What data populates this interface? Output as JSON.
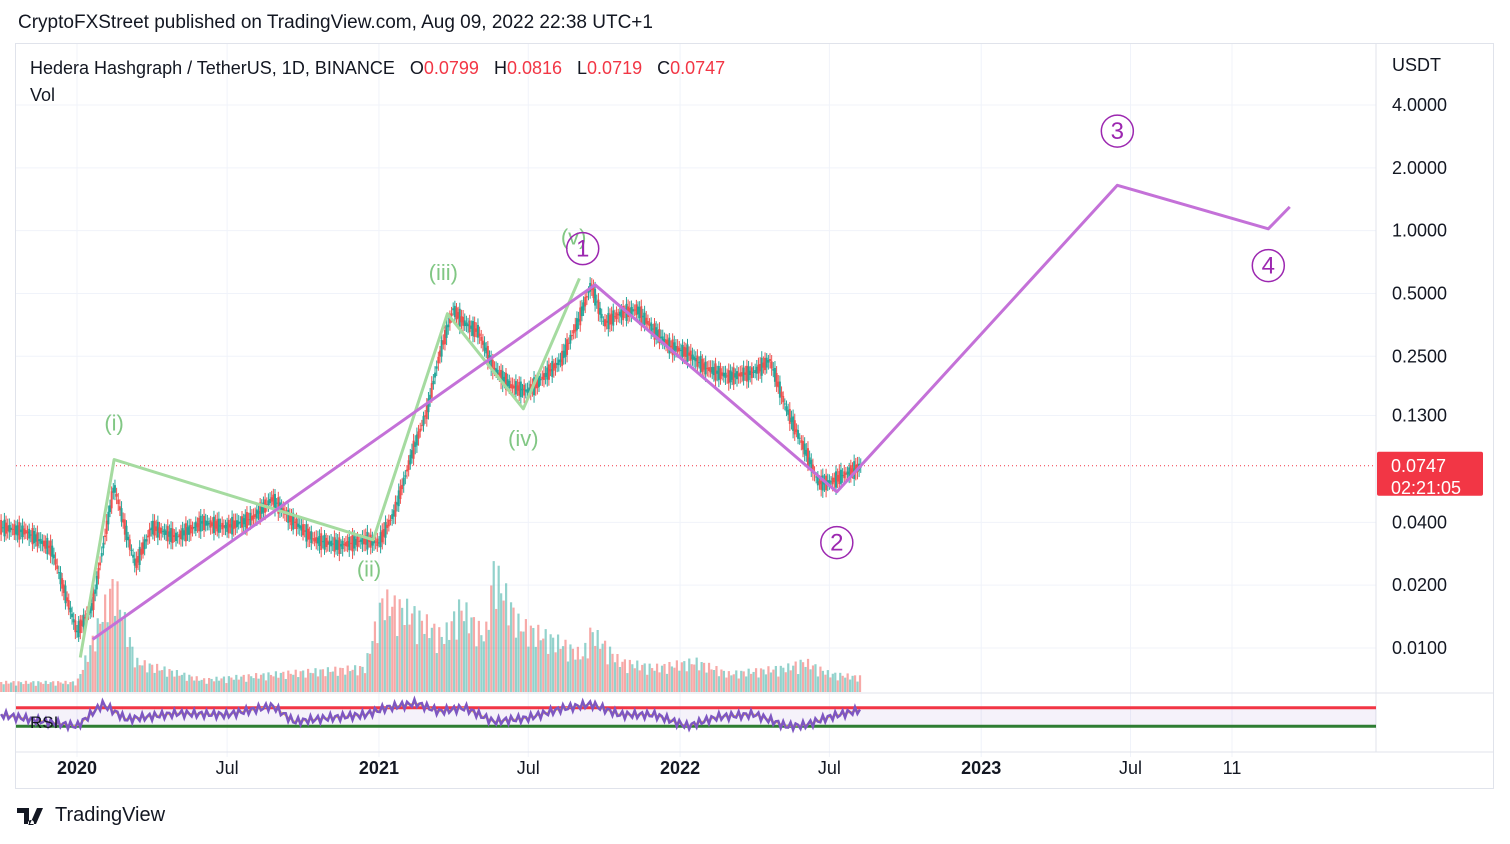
{
  "header": {
    "published_text": "CryptoFXStreet published on TradingView.com, Aug 09, 2022 22:38 UTC+1"
  },
  "legend": {
    "symbol": "Hedera Hashgraph / TetherUS, 1D, BINANCE",
    "open_label": "O",
    "open_value": "0.0799",
    "high_label": "H",
    "high_value": "0.0816",
    "low_label": "L",
    "low_value": "0.0719",
    "close_label": "C",
    "close_value": "0.0747",
    "vol_label": "Vol"
  },
  "footer": {
    "brand": "TradingView",
    "logo_icon": "tradingview-logo-icon"
  },
  "chart_data": {
    "type": "line",
    "yscale": "log",
    "currency": "USDT",
    "y_ticks": [
      "4.0000",
      "2.0000",
      "1.0000",
      "0.5000",
      "0.2500",
      "0.1300",
      "0.0400",
      "0.0200",
      "0.0100"
    ],
    "y_tick_values": [
      4,
      2,
      1,
      0.5,
      0.25,
      0.13,
      0.04,
      0.02,
      0.01
    ],
    "x_ticks": [
      "2020",
      "Jul",
      "2021",
      "Jul",
      "2022",
      "Jul",
      "2023",
      "Jul",
      "11"
    ],
    "x_tick_dates": [
      "2020-01-01",
      "2020-07-01",
      "2021-01-01",
      "2021-07-01",
      "2022-01-01",
      "2022-07-01",
      "2023-01-01",
      "2023-07-01",
      "2023-11-01"
    ],
    "bold_x_ticks": [
      "2020",
      "2021",
      "2022",
      "2023"
    ],
    "last_price": {
      "value": 0.0747,
      "label": "0.0747",
      "countdown": "02:21:05",
      "color": "#f23645"
    },
    "price_series": {
      "name": "HBARUSDT",
      "dates": [
        "2019-10-01",
        "2019-11-01",
        "2019-12-01",
        "2020-01-01",
        "2020-01-20",
        "2020-02-15",
        "2020-02-25",
        "2020-03-12",
        "2020-04-01",
        "2020-05-01",
        "2020-06-01",
        "2020-07-01",
        "2020-08-01",
        "2020-08-25",
        "2020-09-15",
        "2020-10-15",
        "2020-11-15",
        "2020-12-15",
        "2021-01-01",
        "2021-01-20",
        "2021-02-10",
        "2021-03-01",
        "2021-03-15",
        "2021-04-01",
        "2021-04-15",
        "2021-05-01",
        "2021-05-20",
        "2021-06-10",
        "2021-07-01",
        "2021-07-20",
        "2021-08-10",
        "2021-09-01",
        "2021-09-15",
        "2021-10-01",
        "2021-10-20",
        "2021-11-10",
        "2021-12-01",
        "2021-12-20",
        "2022-01-10",
        "2022-02-01",
        "2022-03-01",
        "2022-04-01",
        "2022-04-20",
        "2022-05-10",
        "2022-06-01",
        "2022-06-18",
        "2022-07-01",
        "2022-07-20",
        "2022-08-09"
      ],
      "values": [
        0.038,
        0.036,
        0.03,
        0.012,
        0.016,
        0.06,
        0.042,
        0.025,
        0.038,
        0.034,
        0.04,
        0.038,
        0.042,
        0.052,
        0.042,
        0.033,
        0.031,
        0.033,
        0.032,
        0.045,
        0.085,
        0.14,
        0.25,
        0.42,
        0.36,
        0.33,
        0.22,
        0.18,
        0.17,
        0.2,
        0.24,
        0.38,
        0.55,
        0.36,
        0.4,
        0.42,
        0.33,
        0.28,
        0.26,
        0.22,
        0.2,
        0.21,
        0.24,
        0.14,
        0.09,
        0.062,
        0.062,
        0.068,
        0.0747
      ]
    },
    "volume_series": {
      "dates": [
        "2020-01-01",
        "2020-02-15",
        "2020-03-12",
        "2020-06-01",
        "2020-09-01",
        "2020-12-15",
        "2021-01-05",
        "2021-02-10",
        "2021-03-01",
        "2021-03-20",
        "2021-04-10",
        "2021-05-10",
        "2021-05-20",
        "2021-06-20",
        "2021-08-10",
        "2021-09-05",
        "2021-09-15",
        "2021-10-20",
        "2021-12-01",
        "2022-01-20",
        "2022-03-01",
        "2022-05-10",
        "2022-06-01",
        "2022-07-01",
        "2022-08-09"
      ],
      "relative": [
        0.08,
        0.9,
        0.25,
        0.1,
        0.15,
        0.2,
        0.75,
        0.65,
        0.55,
        0.45,
        0.7,
        0.45,
        1.0,
        0.55,
        0.4,
        0.3,
        0.5,
        0.25,
        0.2,
        0.25,
        0.15,
        0.2,
        0.25,
        0.15,
        0.12
      ]
    },
    "rsi_series": {
      "name": "RSI",
      "dates": [
        "2019-10-01",
        "2019-12-01",
        "2020-01-01",
        "2020-02-01",
        "2020-03-01",
        "2020-05-01",
        "2020-07-01",
        "2020-08-25",
        "2020-09-20",
        "2020-11-01",
        "2020-12-15",
        "2021-01-10",
        "2021-02-15",
        "2021-03-15",
        "2021-04-15",
        "2021-05-20",
        "2021-07-01",
        "2021-08-10",
        "2021-09-15",
        "2021-10-20",
        "2021-12-01",
        "2022-01-10",
        "2022-02-15",
        "2022-04-01",
        "2022-05-10",
        "2022-06-01",
        "2022-07-01",
        "2022-08-09"
      ],
      "values": [
        55,
        38,
        30,
        78,
        45,
        58,
        55,
        74,
        40,
        48,
        55,
        70,
        80,
        62,
        70,
        40,
        48,
        68,
        78,
        55,
        55,
        30,
        50,
        56,
        30,
        32,
        50,
        66
      ],
      "upper_band": 70,
      "lower_band": 30
    },
    "elliott_major": {
      "color": "#c471d8",
      "labels": [
        "1",
        "2",
        "3",
        "4"
      ],
      "points": [
        {
          "date": "2020-01-20",
          "value": 0.011
        },
        {
          "date": "2021-09-20",
          "value": 0.55
        },
        {
          "date": "2022-07-10",
          "value": 0.056
        },
        {
          "date": "2023-06-15",
          "value": 1.65
        },
        {
          "date": "2023-12-15",
          "value": 1.02
        },
        {
          "date": "2024-01-10",
          "value": 1.3
        }
      ],
      "label_points": [
        {
          "label": "1",
          "date": "2021-09-05",
          "value": 0.82
        },
        {
          "label": "2",
          "date": "2022-07-10",
          "value": 0.032
        },
        {
          "label": "3",
          "date": "2023-06-15",
          "value": 3.0
        },
        {
          "label": "4",
          "date": "2023-12-15",
          "value": 0.68
        }
      ]
    },
    "elliott_minor": {
      "color": "#a5dba0",
      "labels": [
        "(i)",
        "(ii)",
        "(iii)",
        "(iv)",
        "(v)"
      ],
      "points": [
        {
          "date": "2020-01-05",
          "value": 0.009
        },
        {
          "date": "2020-02-15",
          "value": 0.08
        },
        {
          "date": "2020-12-25",
          "value": 0.033
        },
        {
          "date": "2021-03-25",
          "value": 0.4
        },
        {
          "date": "2021-06-25",
          "value": 0.14
        },
        {
          "date": "2021-09-01",
          "value": 0.59
        }
      ],
      "label_points": [
        {
          "label": "(i)",
          "date": "2020-02-15",
          "value": 0.11
        },
        {
          "label": "(ii)",
          "date": "2020-12-20",
          "value": 0.022
        },
        {
          "label": "(iii)",
          "date": "2021-03-20",
          "value": 0.58
        },
        {
          "label": "(iv)",
          "date": "2021-06-25",
          "value": 0.093
        },
        {
          "label": "(v)",
          "date": "2021-08-25",
          "value": 0.86
        }
      ]
    }
  }
}
